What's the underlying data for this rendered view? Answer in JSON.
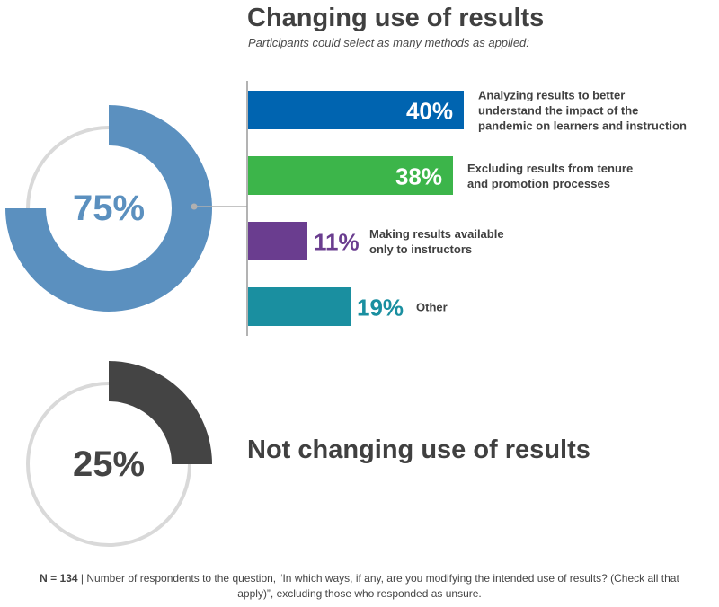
{
  "title": "Changing use of results",
  "subtitle": "Participants could select as many methods as applied:",
  "colors": {
    "donut_changing": "#5b90bf",
    "donut_not_changing": "#444444",
    "donut_track": "#d9d9d9",
    "connector": "#b0b0b0",
    "axis": "#9a9a9a",
    "text_dark": "#404040"
  },
  "chart_data": [
    {
      "type": "pie",
      "variant": "donut",
      "center_label": "75%",
      "slices": [
        {
          "label": "Changing use of results",
          "value": 75
        },
        {
          "label": "Remainder",
          "value": 25
        }
      ],
      "color": "#5b90bf",
      "track_color": "#d9d9d9"
    },
    {
      "type": "bar",
      "orientation": "horizontal",
      "categories": [
        "Analyzing results to better understand the impact of the pandemic on learners and instruction",
        "Excluding results from tenure and promotion processes",
        "Making results available only to instructors",
        "Other"
      ],
      "category_lines": [
        [
          "Analyzing results to better",
          "understand the impact of the",
          "pandemic on learners and instruction"
        ],
        [
          "Excluding results from tenure",
          "and promotion processes"
        ],
        [
          "Making results available",
          "only to instructors"
        ],
        [
          "Other"
        ]
      ],
      "values": [
        40,
        38,
        11,
        19
      ],
      "value_labels": [
        "40%",
        "38%",
        "11%",
        "19%"
      ],
      "colors": [
        "#0064b0",
        "#3cb54a",
        "#6a3d8f",
        "#1a8fa0"
      ],
      "value_label_inside": [
        true,
        true,
        false,
        false
      ],
      "xlim": [
        0,
        100
      ]
    },
    {
      "type": "pie",
      "variant": "donut",
      "center_label": "25%",
      "slices": [
        {
          "label": "Not changing use of results",
          "value": 25
        },
        {
          "label": "Remainder",
          "value": 75
        }
      ],
      "color": "#444444",
      "track_color": "#d9d9d9"
    }
  ],
  "not_changing_label": "Not changing use of results",
  "footnote": {
    "n_label": "N = 134",
    "separator": " | ",
    "text": "Number of respondents to the question, “In which ways, if any, are you modifying the intended use of results? (Check all that apply)”, excluding those who responded as unsure."
  }
}
